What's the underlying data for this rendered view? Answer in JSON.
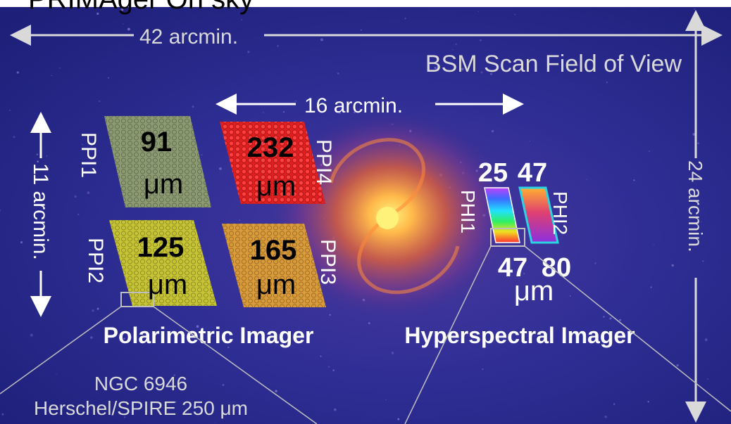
{
  "slide_title": "PRIMAger On sky",
  "fov": {
    "width_label": "42 arcmin.",
    "height_label": "24 arcmin.",
    "scan_label": "BSM Scan Field of View"
  },
  "polarimetric": {
    "spacing_label": "16 arcmin.",
    "height_label": "11 arcmin.",
    "title": "Polarimetric Imager",
    "unit": "μm",
    "arrays": [
      {
        "id": "PPI1",
        "wavelength": "91",
        "color": "#8c9a72"
      },
      {
        "id": "PPI4",
        "wavelength": "232",
        "color": "#e02020"
      },
      {
        "id": "PPI2",
        "wavelength": "125",
        "color": "#c6c435"
      },
      {
        "id": "PPI3",
        "wavelength": "165",
        "color": "#d99a3a"
      }
    ]
  },
  "hyperspectral": {
    "title": "Hyperspectral Imager",
    "unit": "μm",
    "bands": [
      {
        "id": "PHI1",
        "top": "25",
        "bottom": "47"
      },
      {
        "id": "PHI2",
        "top": "47",
        "bottom": "80"
      }
    ]
  },
  "source": {
    "name": "NGC 6946",
    "instrument": "Herschel/SPIRE 250 μm"
  },
  "colors": {
    "sky": "#2a2a8a",
    "galaxy": "#ff9a3a",
    "phi2_border": "#2ad4e0"
  }
}
